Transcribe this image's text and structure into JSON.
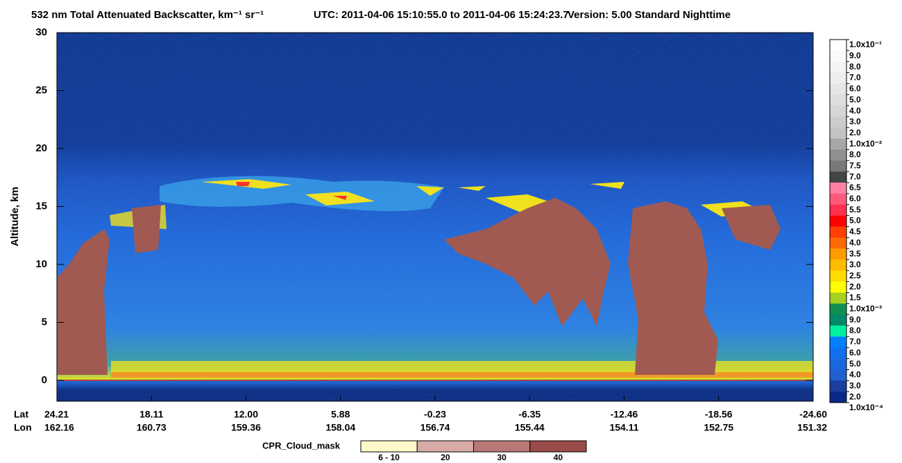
{
  "chart_data": {
    "type": "curtain",
    "title": "532 nm Total Attenuated Backscatter, km⁻¹ sr⁻¹",
    "utc": "UTC:  2011-04-06 15:10:55.0  to  2011-04-06 15:24:23.7",
    "version": "Version: 5.00  Standard  Nighttime",
    "ylabel": "Altitude, km",
    "ylim": [
      -1.8,
      30
    ],
    "yticks": [
      0,
      5,
      10,
      15,
      20,
      25,
      30
    ],
    "x_rows": [
      "Lat",
      "Lon"
    ],
    "lat": [
      "24.21",
      "18.11",
      "12.00",
      "5.88",
      "-0.23",
      "-6.35",
      "-12.46",
      "-18.56",
      "-24.60"
    ],
    "lon": [
      "162.16",
      "160.73",
      "159.36",
      "158.04",
      "156.74",
      "155.44",
      "154.11",
      "152.75",
      "151.32"
    ],
    "colorbar": {
      "labels": [
        "1.0x10⁻¹",
        "9.0",
        "8.0",
        "7.0",
        "6.0",
        "5.0",
        "4.0",
        "3.0",
        "2.0",
        "1.0x10⁻²",
        "8.0",
        "7.5",
        "7.0",
        "6.5",
        "6.0",
        "5.5",
        "5.0",
        "4.5",
        "4.0",
        "3.5",
        "3.0",
        "2.5",
        "2.0",
        "1.5",
        "1.0x10⁻³",
        "9.0",
        "8.0",
        "7.0",
        "6.0",
        "5.0",
        "4.0",
        "3.0",
        "2.0",
        "1.0x10⁻⁴"
      ],
      "colors": [
        "#ffffff",
        "#fafafa",
        "#f4f4f4",
        "#eeeeee",
        "#e6e6e6",
        "#dedede",
        "#d6d6d6",
        "#cdcdcd",
        "#c3c3c3",
        "#a8a8a8",
        "#909090",
        "#787878",
        "#444444",
        "#ff80a0",
        "#ff5a7c",
        "#ff3050",
        "#ff0000",
        "#ff4000",
        "#ff6a00",
        "#ff9a00",
        "#ffbb00",
        "#ffdd00",
        "#ffff00",
        "#a8d020",
        "#109050",
        "#008a6a",
        "#00f0a0",
        "#0080ff",
        "#1070f0",
        "#1a68e0",
        "#2060d0",
        "#1a3ea0",
        "#0a2a8a"
      ]
    },
    "cloud_mask": {
      "title": "CPR_Cloud_mask",
      "categories": [
        "6 - 10",
        "20",
        "30",
        "40"
      ],
      "colors": [
        "#fff8c8",
        "#d8aaa8",
        "#b87876",
        "#9a4a48"
      ]
    }
  }
}
